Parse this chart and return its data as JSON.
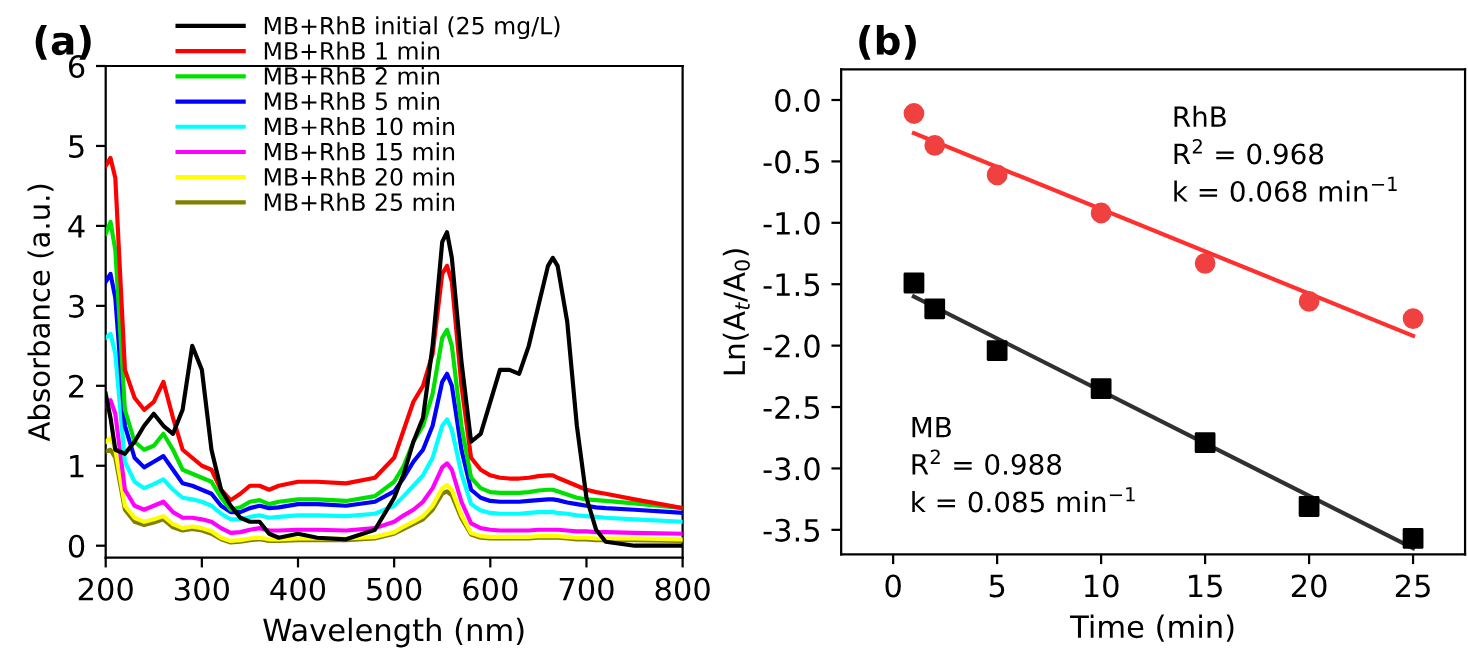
{
  "chart_data": [
    {
      "type": "line",
      "title": "(a)",
      "xlabel": "Wavelength (nm)",
      "ylabel": "Absorbance (a.u.)",
      "xlim": [
        200,
        800
      ],
      "ylim": [
        -0.15,
        6
      ],
      "xticks": [
        200,
        300,
        400,
        500,
        600,
        700,
        800
      ],
      "yticks": [
        0,
        1,
        2,
        3,
        4,
        5,
        6
      ],
      "legend": "top left",
      "grid": false,
      "marker": "none",
      "line_style": "solid",
      "x": [
        200,
        205,
        210,
        220,
        230,
        240,
        250,
        260,
        270,
        280,
        290,
        300,
        310,
        320,
        330,
        340,
        350,
        360,
        370,
        380,
        400,
        420,
        450,
        480,
        500,
        510,
        520,
        530,
        540,
        550,
        555,
        560,
        570,
        580,
        590,
        600,
        610,
        620,
        630,
        640,
        650,
        660,
        665,
        670,
        680,
        690,
        700,
        710,
        720,
        750,
        800
      ],
      "series": [
        {
          "name": "MB+RhB initial (25 mg/L)",
          "color": "#000000",
          "values": [
            1.9,
            1.6,
            1.2,
            1.15,
            1.3,
            1.5,
            1.65,
            1.5,
            1.4,
            1.7,
            2.5,
            2.2,
            1.2,
            0.7,
            0.5,
            0.35,
            0.3,
            0.3,
            0.15,
            0.1,
            0.15,
            0.1,
            0.08,
            0.2,
            0.6,
            0.9,
            1.3,
            1.6,
            2.5,
            3.8,
            3.92,
            3.6,
            2.3,
            1.3,
            1.4,
            1.8,
            2.2,
            2.2,
            2.15,
            2.5,
            3.0,
            3.5,
            3.6,
            3.5,
            2.8,
            1.5,
            0.6,
            0.2,
            0.05,
            0.0,
            0.0
          ]
        },
        {
          "name": "MB+RhB 1 min",
          "color": "#ff0000",
          "values": [
            4.75,
            4.85,
            4.6,
            2.2,
            1.85,
            1.7,
            1.8,
            2.05,
            1.6,
            1.2,
            1.1,
            1.0,
            0.95,
            0.7,
            0.57,
            0.65,
            0.75,
            0.75,
            0.7,
            0.75,
            0.8,
            0.8,
            0.78,
            0.85,
            1.1,
            1.45,
            1.8,
            2.0,
            2.4,
            3.4,
            3.5,
            3.3,
            2.0,
            1.1,
            0.95,
            0.88,
            0.85,
            0.84,
            0.84,
            0.85,
            0.87,
            0.88,
            0.88,
            0.85,
            0.8,
            0.75,
            0.7,
            0.67,
            0.65,
            0.58,
            0.47
          ]
        },
        {
          "name": "MB+RhB 2 min",
          "color": "#00e000",
          "values": [
            3.9,
            4.05,
            3.7,
            1.7,
            1.3,
            1.2,
            1.25,
            1.4,
            1.2,
            0.95,
            0.9,
            0.85,
            0.8,
            0.6,
            0.45,
            0.48,
            0.55,
            0.57,
            0.52,
            0.55,
            0.58,
            0.58,
            0.56,
            0.62,
            0.8,
            1.0,
            1.3,
            1.5,
            1.9,
            2.6,
            2.7,
            2.5,
            1.5,
            0.85,
            0.72,
            0.67,
            0.66,
            0.66,
            0.66,
            0.67,
            0.69,
            0.7,
            0.7,
            0.68,
            0.64,
            0.6,
            0.58,
            0.57,
            0.56,
            0.53,
            0.47
          ]
        },
        {
          "name": "MB+RhB 5 min",
          "color": "#0000ff",
          "values": [
            3.3,
            3.4,
            3.1,
            1.5,
            1.1,
            0.98,
            1.05,
            1.12,
            0.95,
            0.78,
            0.75,
            0.7,
            0.65,
            0.5,
            0.42,
            0.42,
            0.47,
            0.5,
            0.47,
            0.48,
            0.52,
            0.52,
            0.5,
            0.55,
            0.68,
            0.85,
            1.05,
            1.2,
            1.5,
            2.05,
            2.15,
            2.0,
            1.2,
            0.7,
            0.6,
            0.56,
            0.55,
            0.55,
            0.55,
            0.56,
            0.57,
            0.58,
            0.58,
            0.57,
            0.54,
            0.52,
            0.5,
            0.48,
            0.47,
            0.45,
            0.41
          ]
        },
        {
          "name": "MB+RhB 10 min",
          "color": "#00ffff",
          "values": [
            2.6,
            2.65,
            2.4,
            1.05,
            0.8,
            0.72,
            0.77,
            0.83,
            0.7,
            0.6,
            0.58,
            0.55,
            0.5,
            0.4,
            0.33,
            0.33,
            0.36,
            0.38,
            0.35,
            0.36,
            0.38,
            0.38,
            0.37,
            0.4,
            0.5,
            0.62,
            0.75,
            0.88,
            1.1,
            1.5,
            1.58,
            1.45,
            0.9,
            0.52,
            0.44,
            0.41,
            0.4,
            0.4,
            0.4,
            0.41,
            0.42,
            0.42,
            0.42,
            0.41,
            0.4,
            0.38,
            0.37,
            0.36,
            0.35,
            0.33,
            0.3
          ]
        },
        {
          "name": "MB+RhB 15 min",
          "color": "#ff00ff",
          "values": [
            1.75,
            1.82,
            1.65,
            0.7,
            0.5,
            0.45,
            0.5,
            0.55,
            0.42,
            0.35,
            0.35,
            0.33,
            0.3,
            0.22,
            0.16,
            0.17,
            0.2,
            0.22,
            0.19,
            0.19,
            0.2,
            0.2,
            0.19,
            0.22,
            0.3,
            0.38,
            0.45,
            0.55,
            0.72,
            0.98,
            1.03,
            0.95,
            0.55,
            0.28,
            0.22,
            0.2,
            0.19,
            0.19,
            0.19,
            0.19,
            0.2,
            0.2,
            0.2,
            0.2,
            0.19,
            0.18,
            0.18,
            0.17,
            0.17,
            0.16,
            0.15
          ]
        },
        {
          "name": "MB+RhB 20 min",
          "color": "#ffff00",
          "values": [
            1.3,
            1.35,
            1.2,
            0.5,
            0.35,
            0.3,
            0.33,
            0.37,
            0.27,
            0.22,
            0.24,
            0.22,
            0.18,
            0.1,
            0.06,
            0.07,
            0.09,
            0.1,
            0.08,
            0.08,
            0.09,
            0.09,
            0.09,
            0.11,
            0.17,
            0.24,
            0.3,
            0.37,
            0.5,
            0.72,
            0.76,
            0.7,
            0.38,
            0.16,
            0.12,
            0.11,
            0.11,
            0.11,
            0.11,
            0.11,
            0.12,
            0.12,
            0.12,
            0.12,
            0.11,
            0.1,
            0.1,
            0.09,
            0.09,
            0.09,
            0.08
          ]
        },
        {
          "name": "MB+RhB 25 min",
          "color": "#808000",
          "values": [
            1.18,
            1.2,
            1.1,
            0.45,
            0.3,
            0.26,
            0.29,
            0.33,
            0.23,
            0.19,
            0.21,
            0.19,
            0.15,
            0.08,
            0.04,
            0.05,
            0.07,
            0.08,
            0.06,
            0.06,
            0.07,
            0.07,
            0.07,
            0.09,
            0.15,
            0.21,
            0.27,
            0.33,
            0.45,
            0.65,
            0.68,
            0.63,
            0.34,
            0.14,
            0.1,
            0.09,
            0.09,
            0.09,
            0.09,
            0.09,
            0.1,
            0.1,
            0.1,
            0.1,
            0.09,
            0.08,
            0.08,
            0.07,
            0.07,
            0.07,
            0.06
          ]
        }
      ]
    },
    {
      "type": "scatter",
      "title": "(b)",
      "xlabel": "Time (min)",
      "ylabel": "Ln(A$_{t}$/A$_{0}$)",
      "xlim": [
        -2.5,
        27.5
      ],
      "ylim": [
        -3.7,
        0.25
      ],
      "xticks": [
        0,
        5,
        10,
        15,
        20,
        25
      ],
      "yticks": [
        {
          "value": 0,
          "label": "0.0"
        },
        {
          "value": -0.5,
          "label": "-0.5"
        },
        {
          "value": -1,
          "label": "-1.0"
        },
        {
          "value": -1.5,
          "label": "-1.5"
        },
        {
          "value": -2,
          "label": "-2.0"
        },
        {
          "value": -2.5,
          "label": "-2.5"
        },
        {
          "value": -3,
          "label": "-3.0"
        },
        {
          "value": -3.5,
          "label": "-3.5"
        }
      ],
      "grid": false,
      "legend": false,
      "annotations": [
        "RhB\nR$^{2}$ = 0.968\nk = 0.068 min$^{−1}$",
        "MB\nR$^{2}$ = 0.988\nk = 0.085 min$^{−1}$"
      ],
      "series": [
        {
          "type": "scatter",
          "marker": "circle",
          "color": "#f04040",
          "x": [
            1,
            2,
            5,
            10,
            15,
            20,
            25
          ],
          "values": [
            -0.11,
            -0.37,
            -0.61,
            -0.92,
            -1.33,
            -1.64,
            -1.78
          ]
        },
        {
          "type": "scatter",
          "marker": "square",
          "color": "#000000",
          "x": [
            1,
            2,
            5,
            10,
            15,
            20,
            25
          ],
          "values": [
            -1.49,
            -1.7,
            -2.04,
            -2.35,
            -2.79,
            -3.31,
            -3.57
          ]
        },
        {
          "type": "line",
          "line_style": "solid",
          "color": "#ff3030",
          "x": [
            1,
            25
          ],
          "values": [
            -0.27,
            -1.92
          ]
        },
        {
          "type": "line",
          "line_style": "solid",
          "color": "#303030",
          "x": [
            1,
            25
          ],
          "values": [
            -1.6,
            -3.65
          ]
        }
      ]
    }
  ]
}
